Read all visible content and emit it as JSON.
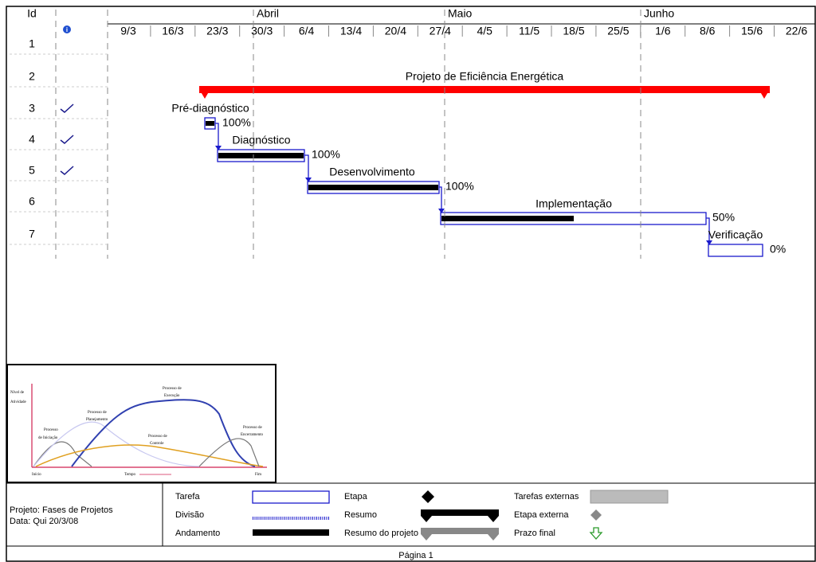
{
  "header": {
    "id_label": "Id",
    "months": [
      "Abril",
      "Maio",
      "Junho"
    ],
    "weeks": [
      "9/3",
      "16/3",
      "23/3",
      "30/3",
      "6/4",
      "13/4",
      "20/4",
      "27/4",
      "4/5",
      "11/5",
      "18/5",
      "25/5",
      "1/6",
      "8/6",
      "15/6",
      "22/6"
    ]
  },
  "rows": [
    {
      "id": "1"
    },
    {
      "id": "2",
      "name": "Projeto de Eficiência Energética"
    },
    {
      "id": "3",
      "name": "Pré-diagnóstico",
      "progress": "100%"
    },
    {
      "id": "4",
      "name": "Diagnóstico",
      "progress": "100%"
    },
    {
      "id": "5",
      "name": "Desenvolvimento",
      "progress": "100%"
    },
    {
      "id": "6",
      "name": "Implementação",
      "progress": "50%"
    },
    {
      "id": "7",
      "name": "Verificação",
      "progress": "0%"
    }
  ],
  "inset": {
    "y_label": [
      "Nível de",
      "Atividade"
    ],
    "curves": [
      [
        "Processo",
        "de Iniciação"
      ],
      [
        "Processo de",
        "Planejamento"
      ],
      [
        "Processo de",
        "Execução"
      ],
      [
        "Processo de",
        "Controle"
      ],
      [
        "Processo de",
        "Encerramento"
      ]
    ],
    "x_start": "Início",
    "x_mid": "Tempo",
    "x_end": "Fim"
  },
  "legend": {
    "project": "Projeto: Fases de Projetos",
    "date": "Data: Qui 20/3/08",
    "items": [
      "Tarefa",
      "Divisão",
      "Andamento",
      "Etapa",
      "Resumo",
      "Resumo do projeto",
      "Tarefas externas",
      "Etapa externa",
      "Prazo final"
    ]
  },
  "footer": "Página 1"
}
